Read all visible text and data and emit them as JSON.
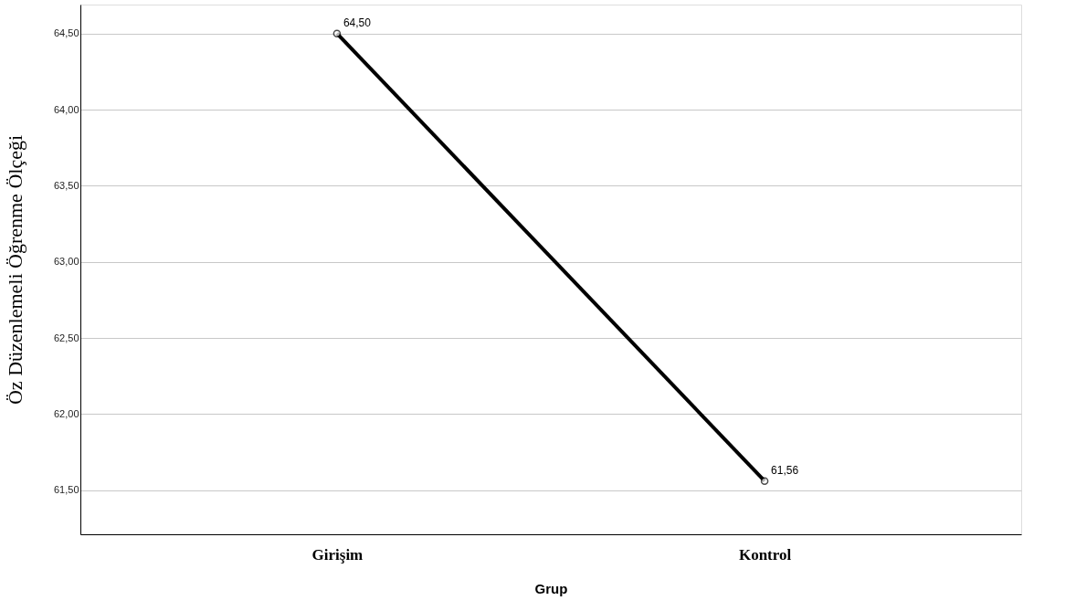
{
  "chart_data": {
    "type": "line",
    "xlabel": "Grup",
    "ylabel": "Öz Düzenlemeli Öğrenme Ölçeği",
    "categories": [
      "Girişim",
      "Kontrol"
    ],
    "series": [
      {
        "color": "#000000",
        "values": [
          64.5,
          61.56
        ],
        "value_labels": [
          "64,50",
          "61,56"
        ]
      }
    ],
    "ylim": [
      61.21,
      64.69
    ],
    "yticks": [
      {
        "value": 61.5,
        "label": "61,50"
      },
      {
        "value": 62.0,
        "label": "62,00"
      },
      {
        "value": 62.5,
        "label": "62,50"
      },
      {
        "value": 63.0,
        "label": "63,00"
      },
      {
        "value": 63.5,
        "label": "63,50"
      },
      {
        "value": 64.0,
        "label": "64,00"
      },
      {
        "value": 64.5,
        "label": "64,50"
      }
    ],
    "grid": "y",
    "marker": "circle",
    "line_style": "solid"
  }
}
